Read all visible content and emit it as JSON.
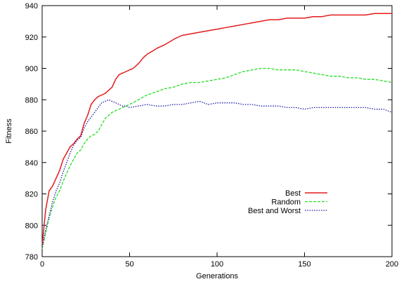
{
  "chart_data": {
    "type": "line",
    "title": "",
    "xlabel": "Generations",
    "ylabel": "Fitness",
    "xlim": [
      0,
      200
    ],
    "ylim": [
      780,
      940
    ],
    "xticks": [
      0,
      50,
      100,
      150,
      200
    ],
    "yticks": [
      780,
      800,
      820,
      840,
      860,
      880,
      900,
      920,
      940
    ],
    "grid": false,
    "legend_position": "lower-right",
    "series": [
      {
        "name": "Best",
        "color": "#e41a1c",
        "style": "solid",
        "x": [
          0,
          2,
          4,
          6,
          8,
          10,
          12,
          14,
          16,
          18,
          20,
          22,
          24,
          26,
          28,
          30,
          32,
          34,
          36,
          38,
          40,
          42,
          44,
          46,
          48,
          50,
          52,
          55,
          58,
          60,
          63,
          66,
          70,
          73,
          76,
          80,
          85,
          90,
          95,
          100,
          105,
          110,
          115,
          120,
          125,
          130,
          135,
          140,
          145,
          150,
          155,
          160,
          165,
          170,
          175,
          180,
          185,
          190,
          195,
          200
        ],
        "y": [
          787,
          810,
          822,
          825,
          830,
          835,
          842,
          846,
          850,
          852,
          855,
          857,
          865,
          870,
          877,
          880,
          882,
          883,
          884,
          886,
          888,
          893,
          896,
          897,
          898,
          899,
          900,
          903,
          907,
          909,
          911,
          913,
          915,
          917,
          919,
          921,
          922,
          923,
          924,
          925,
          926,
          927,
          928,
          929,
          930,
          931,
          931,
          932,
          932,
          932,
          933,
          933,
          934,
          934,
          934,
          934,
          934,
          935,
          935,
          935
        ]
      },
      {
        "name": "Random",
        "color": "#22dd22",
        "style": "dashed",
        "x": [
          0,
          2,
          4,
          6,
          8,
          10,
          12,
          14,
          16,
          18,
          20,
          22,
          24,
          26,
          28,
          30,
          32,
          34,
          36,
          38,
          40,
          42,
          44,
          46,
          48,
          50,
          55,
          60,
          65,
          70,
          75,
          80,
          85,
          90,
          95,
          100,
          105,
          110,
          115,
          120,
          125,
          130,
          135,
          140,
          145,
          150,
          155,
          160,
          165,
          170,
          175,
          180,
          185,
          190,
          195,
          200
        ],
        "y": [
          785,
          795,
          805,
          812,
          818,
          822,
          828,
          833,
          838,
          842,
          846,
          848,
          852,
          855,
          857,
          858,
          860,
          864,
          868,
          870,
          872,
          873,
          874,
          875,
          876,
          877,
          880,
          883,
          885,
          887,
          888,
          890,
          891,
          891,
          892,
          893,
          894,
          896,
          898,
          899,
          900,
          900,
          899,
          899,
          899,
          898,
          897,
          896,
          895,
          895,
          894,
          894,
          893,
          893,
          892,
          891
        ]
      },
      {
        "name": "Best and Worst",
        "color": "#1a1aaa",
        "style": "dotted",
        "x": [
          0,
          2,
          4,
          6,
          8,
          10,
          12,
          14,
          16,
          18,
          20,
          22,
          24,
          26,
          28,
          30,
          32,
          34,
          36,
          38,
          40,
          42,
          44,
          46,
          48,
          50,
          55,
          60,
          65,
          70,
          75,
          80,
          85,
          90,
          95,
          100,
          105,
          110,
          115,
          120,
          125,
          130,
          135,
          140,
          145,
          150,
          155,
          160,
          165,
          170,
          175,
          180,
          185,
          190,
          195,
          200
        ],
        "y": [
          786,
          797,
          806,
          815,
          822,
          827,
          834,
          840,
          846,
          851,
          854,
          856,
          862,
          866,
          869,
          872,
          875,
          878,
          879,
          880,
          879,
          878,
          877,
          876,
          876,
          875,
          876,
          877,
          876,
          876,
          877,
          877,
          878,
          879,
          877,
          878,
          878,
          878,
          877,
          877,
          876,
          876,
          876,
          875,
          875,
          874,
          875,
          875,
          875,
          875,
          875,
          875,
          875,
          874,
          874,
          872
        ]
      }
    ]
  }
}
